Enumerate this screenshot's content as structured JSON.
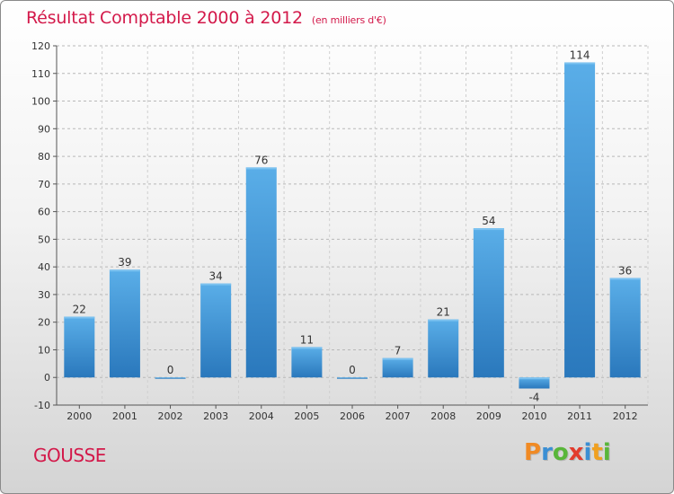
{
  "title": "Résultat Comptable 2000 à 2012",
  "subtitle": "(en milliers d'€)",
  "commune": "GOUSSE",
  "logo": {
    "letters": [
      "P",
      "r",
      "o",
      "x",
      "i",
      "t",
      "i"
    ],
    "colors": [
      "#f08a24",
      "#3b8fd4",
      "#59b63a",
      "#e23c2d",
      "#3b8fd4",
      "#f0a020",
      "#59b63a"
    ]
  },
  "colors": {
    "bar_top": "#5aaee8",
    "bar_bottom": "#2a78bc",
    "title": "#d3194a"
  },
  "chart_data": {
    "type": "bar",
    "categories": [
      "2000",
      "2001",
      "2002",
      "2003",
      "2004",
      "2005",
      "2006",
      "2007",
      "2008",
      "2009",
      "2010",
      "2011",
      "2012"
    ],
    "values": [
      22,
      39,
      0,
      34,
      76,
      11,
      0,
      7,
      21,
      54,
      -4,
      114,
      36
    ],
    "data_labels": [
      "22",
      "39",
      "0",
      "34",
      "76",
      "11",
      "0",
      "7",
      "21",
      "54",
      "-4",
      "114",
      "36"
    ],
    "ylim": [
      -10,
      120
    ],
    "yticks": [
      -10,
      0,
      10,
      20,
      30,
      40,
      50,
      60,
      70,
      80,
      90,
      100,
      110,
      120
    ],
    "grid": true,
    "xlabel": "",
    "ylabel": ""
  }
}
